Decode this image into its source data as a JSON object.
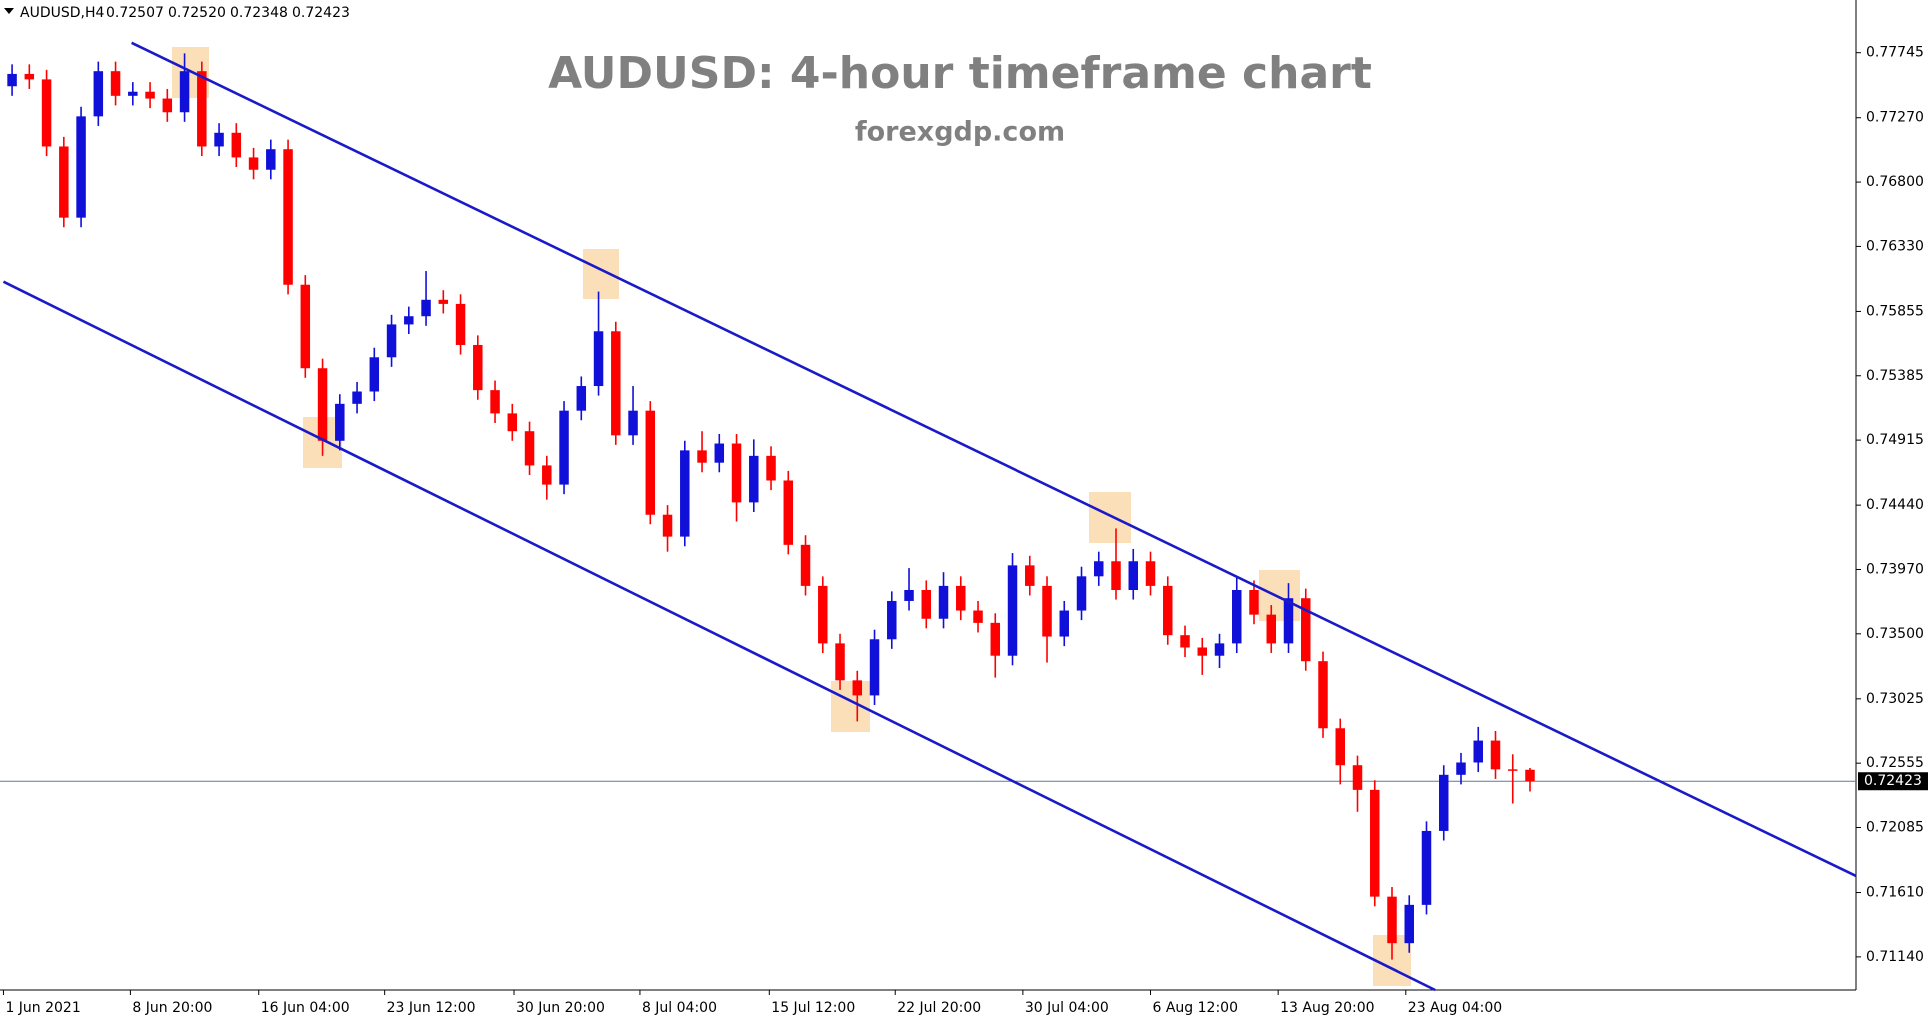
{
  "chart_data": {
    "type": "candlestick",
    "header": {
      "symbol": "AUDUSD,H4",
      "ohlc": [
        "0.72507",
        "0.72520",
        "0.72348",
        "0.72423"
      ]
    },
    "title": "AUDUSD: 4-hour timeframe chart",
    "subtitle": "forexgdp.com",
    "up_color": "#1010d8",
    "down_color": "#ff0000",
    "open": [
      0.775,
      0.7759,
      0.7755,
      0.7706,
      0.7654,
      0.7728,
      0.7761,
      0.7743,
      0.7746,
      0.7741,
      0.7731,
      0.7761,
      0.7706,
      0.7716,
      0.7698,
      0.7689,
      0.7704,
      0.7605,
      0.7544,
      0.7491,
      0.7518,
      0.7527,
      0.7552,
      0.7576,
      0.7582,
      0.7594,
      0.7591,
      0.7561,
      0.7528,
      0.7511,
      0.7498,
      0.7473,
      0.7459,
      0.7513,
      0.7531,
      0.7571,
      0.7495,
      0.7513,
      0.7437,
      0.7421,
      0.7484,
      0.7475,
      0.7489,
      0.7446,
      0.748,
      0.7462,
      0.7415,
      0.7385,
      0.7343,
      0.7316,
      0.7305,
      0.7346,
      0.7374,
      0.7382,
      0.7361,
      0.7385,
      0.7367,
      0.7358,
      0.7334,
      0.74,
      0.7385,
      0.7348,
      0.7367,
      0.7392,
      0.7403,
      0.7382,
      0.7403,
      0.7385,
      0.7349,
      0.734,
      0.7334,
      0.7343,
      0.7382,
      0.7364,
      0.7343,
      0.7376,
      0.733,
      0.7281,
      0.7254,
      0.7236,
      0.7158,
      0.7124,
      0.7152,
      0.7206,
      0.7247,
      0.7256,
      0.7272,
      0.7251,
      0.72507
    ],
    "high": [
      0.7766,
      0.7766,
      0.7762,
      0.7713,
      0.7735,
      0.7768,
      0.7768,
      0.7753,
      0.7753,
      0.7748,
      0.7774,
      0.7768,
      0.7723,
      0.7723,
      0.7705,
      0.7711,
      0.7711,
      0.7612,
      0.7551,
      0.7525,
      0.7534,
      0.7559,
      0.7583,
      0.7589,
      0.7615,
      0.7601,
      0.7598,
      0.7568,
      0.7535,
      0.7518,
      0.7505,
      0.748,
      0.752,
      0.7538,
      0.76,
      0.7578,
      0.7531,
      0.752,
      0.7444,
      0.7491,
      0.7498,
      0.7496,
      0.7496,
      0.7492,
      0.7487,
      0.7469,
      0.7422,
      0.7392,
      0.735,
      0.7323,
      0.7353,
      0.7381,
      0.7398,
      0.7389,
      0.7395,
      0.7392,
      0.7374,
      0.7365,
      0.7409,
      0.7407,
      0.7392,
      0.7374,
      0.7399,
      0.741,
      0.7427,
      0.7412,
      0.741,
      0.7392,
      0.7356,
      0.7347,
      0.735,
      0.7391,
      0.7389,
      0.7371,
      0.7387,
      0.7383,
      0.7337,
      0.7288,
      0.7261,
      0.7243,
      0.7165,
      0.7159,
      0.7213,
      0.7254,
      0.7263,
      0.7282,
      0.7279,
      0.7262,
      0.7252
    ],
    "low": [
      0.7743,
      0.7748,
      0.7699,
      0.7647,
      0.7647,
      0.7721,
      0.7736,
      0.7736,
      0.7734,
      0.7724,
      0.7724,
      0.7699,
      0.7699,
      0.7691,
      0.7682,
      0.7682,
      0.7598,
      0.7537,
      0.748,
      0.7484,
      0.7511,
      0.752,
      0.7545,
      0.7569,
      0.7575,
      0.7584,
      0.7554,
      0.7521,
      0.7504,
      0.7491,
      0.7466,
      0.7448,
      0.7452,
      0.7506,
      0.7524,
      0.7488,
      0.7488,
      0.743,
      0.741,
      0.7414,
      0.7468,
      0.7468,
      0.7432,
      0.7439,
      0.7455,
      0.7408,
      0.7378,
      0.7336,
      0.7309,
      0.7286,
      0.7298,
      0.7339,
      0.7367,
      0.7354,
      0.7354,
      0.736,
      0.7351,
      0.7318,
      0.7327,
      0.7378,
      0.7329,
      0.7341,
      0.736,
      0.7385,
      0.7375,
      0.7375,
      0.7378,
      0.7342,
      0.7333,
      0.732,
      0.7325,
      0.7336,
      0.7357,
      0.7336,
      0.7336,
      0.7323,
      0.7274,
      0.724,
      0.722,
      0.7151,
      0.7112,
      0.7117,
      0.7145,
      0.7199,
      0.724,
      0.7249,
      0.7244,
      0.7226,
      0.72348
    ],
    "close": [
      0.7759,
      0.7755,
      0.7706,
      0.7654,
      0.7728,
      0.7761,
      0.7743,
      0.7746,
      0.7741,
      0.7731,
      0.7761,
      0.7706,
      0.7716,
      0.7698,
      0.7689,
      0.7704,
      0.7605,
      0.7544,
      0.7491,
      0.7518,
      0.7527,
      0.7552,
      0.7576,
      0.7582,
      0.7594,
      0.7591,
      0.7561,
      0.7528,
      0.7511,
      0.7498,
      0.7473,
      0.7459,
      0.7513,
      0.7531,
      0.7571,
      0.7495,
      0.7513,
      0.7437,
      0.7421,
      0.7484,
      0.7475,
      0.7489,
      0.7446,
      0.748,
      0.7462,
      0.7415,
      0.7385,
      0.7343,
      0.7316,
      0.7305,
      0.7346,
      0.7374,
      0.7382,
      0.7361,
      0.7385,
      0.7367,
      0.7358,
      0.7334,
      0.74,
      0.7385,
      0.7348,
      0.7367,
      0.7392,
      0.7403,
      0.7382,
      0.7403,
      0.7385,
      0.7349,
      0.734,
      0.7334,
      0.7343,
      0.7382,
      0.7364,
      0.7343,
      0.7376,
      0.733,
      0.7281,
      0.7254,
      0.7236,
      0.7158,
      0.7124,
      0.7152,
      0.7206,
      0.7247,
      0.7256,
      0.7272,
      0.7251,
      0.725,
      0.72423
    ],
    "current_price": 0.72423,
    "current_price_color": "#5a7a9a",
    "lines": [
      {
        "color": "#1a1ac8",
        "x": [
          6.93,
          106.9
        ],
        "y": [
          0.77817,
          0.71731
        ]
      },
      {
        "color": "#1a1ac8",
        "x": [
          -0.5,
          82.5
        ],
        "y": [
          0.76072,
          0.70898
        ]
      }
    ],
    "xlim": [
      -0.7,
      106.9
    ],
    "xticks": [
      {
        "value": -0.5,
        "label": "1 Jun 2021"
      },
      {
        "value": 6.86,
        "label": "8 Jun 20:00"
      },
      {
        "value": 14.3,
        "label": "16 Jun 04:00"
      },
      {
        "value": 21.6,
        "label": "23 Jun 12:00"
      },
      {
        "value": 29.1,
        "label": "30 Jun 20:00"
      },
      {
        "value": 36.4,
        "label": "8 Jul 04:00"
      },
      {
        "value": 43.9,
        "label": "15 Jul 12:00"
      },
      {
        "value": 51.2,
        "label": "22 Jul 20:00"
      },
      {
        "value": 58.6,
        "label": "30 Jul 04:00"
      },
      {
        "value": 66.0,
        "label": "6 Aug 12:00"
      },
      {
        "value": 73.4,
        "label": "13 Aug 20:00"
      },
      {
        "value": 80.8,
        "label": "23 Aug 04:00"
      }
    ],
    "ylim": [
      0.70898,
      0.7813
    ],
    "yticks": [
      0.77745,
      {
        "value": 0.7727,
        "label": "0.77270"
      },
      {
        "value": 0.768,
        "label": "0.76800"
      },
      {
        "value": 0.7633,
        "label": "0.76330"
      },
      0.75855,
      0.75385,
      0.74915,
      {
        "value": 0.7444,
        "label": "0.74440"
      },
      {
        "value": 0.7397,
        "label": "0.73970"
      },
      {
        "value": 0.735,
        "label": "0.73500"
      },
      0.73025,
      0.72555,
      0.72085,
      {
        "value": 0.7161,
        "label": "0.71610"
      },
      {
        "value": 0.7114,
        "label": "0.71140"
      }
    ],
    "grid": false
  }
}
